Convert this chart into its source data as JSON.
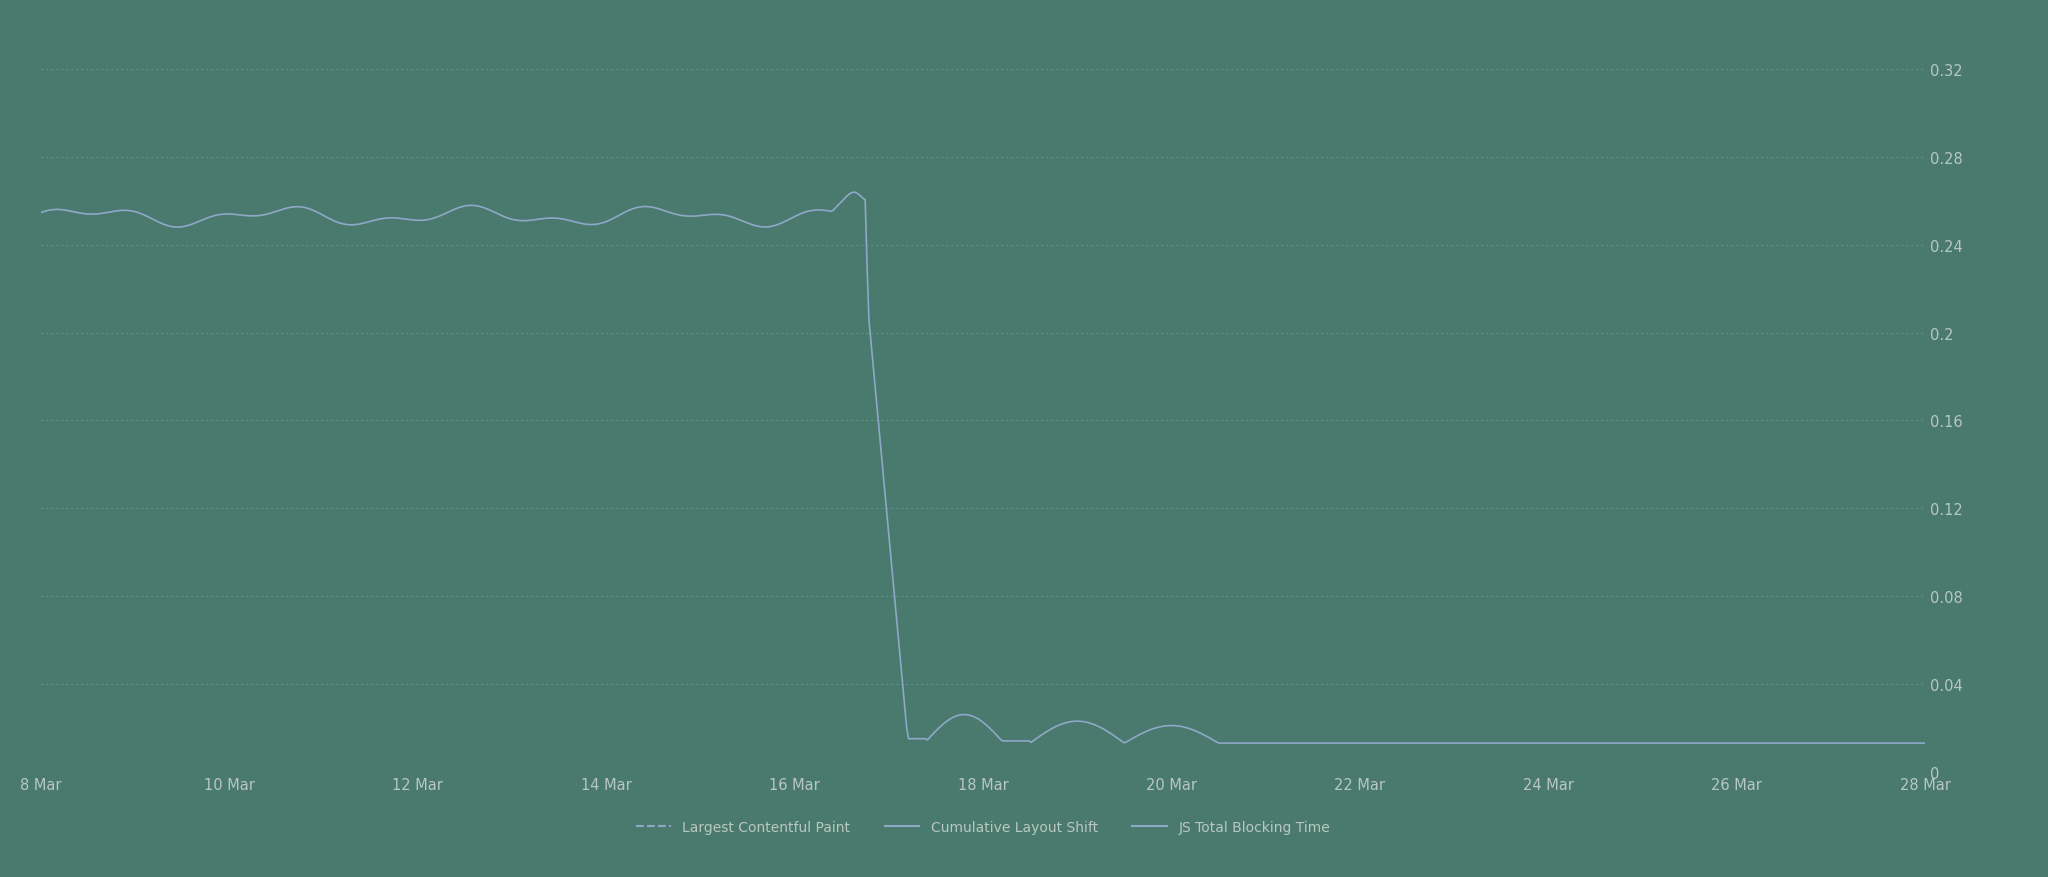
{
  "background_color": "#4a7a6d",
  "plot_bg_color": "#4a7a6d",
  "line_color": "#8fa8c8",
  "grid_color": "#7ab0a0",
  "text_color": "#b8c8c0",
  "x_labels": [
    "8 Mar",
    "10 Mar",
    "12 Mar",
    "14 Mar",
    "16 Mar",
    "18 Mar",
    "20 Mar",
    "22 Mar",
    "24 Mar",
    "26 Mar",
    "28 Mar"
  ],
  "x_positions": [
    0,
    2,
    4,
    6,
    8,
    10,
    12,
    14,
    16,
    18,
    20
  ],
  "y_ticks": [
    0,
    0.04,
    0.08,
    0.12,
    0.16,
    0.2,
    0.24,
    0.28,
    0.32
  ],
  "ylim": [
    0,
    0.34
  ],
  "legend_labels": [
    "Largest Contentful Paint",
    "Cumulative Layout Shift",
    "JS Total Blocking Time"
  ]
}
